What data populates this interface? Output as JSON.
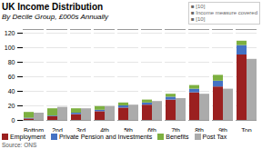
{
  "chart_data": {
    "type": "bar",
    "title": "UK Income Distribution",
    "subtitle": "By Decile Group, £000s Annually",
    "source": "Source: ONS",
    "annotations": [
      "■ [10]\n■ Income measure covered\n■ [10]"
    ],
    "categories": [
      "Bottom",
      "2nd",
      "3rd",
      "4th",
      "5th",
      "6th",
      "7th",
      "8th",
      "9th",
      "Top"
    ],
    "stacked": true,
    "groups": [
      [
        {
          "name": "Employment",
          "color": "#9B2020",
          "values": [
            2,
            5,
            8,
            12,
            17,
            21,
            28,
            38,
            46,
            90
          ]
        },
        {
          "name": "Private Pension and Investments",
          "color": "#4472C4",
          "values": [
            1,
            1,
            2,
            2,
            3,
            3,
            4,
            5,
            8,
            13
          ]
        },
        {
          "name": "Benefits",
          "color": "#7DB040",
          "values": [
            8,
            10,
            6,
            5,
            4,
            4,
            4,
            5,
            8,
            6
          ]
        }
      ],
      [
        {
          "name": "Post Tax",
          "color": "#ABABAB",
          "values": [
            10,
            18,
            16,
            19,
            21,
            26,
            30,
            36,
            43,
            84
          ]
        }
      ]
    ],
    "ylim": [
      0,
      125
    ],
    "yticks": [
      0,
      20,
      40,
      60,
      80,
      100,
      120
    ],
    "grid": true,
    "legend": "bottom"
  }
}
